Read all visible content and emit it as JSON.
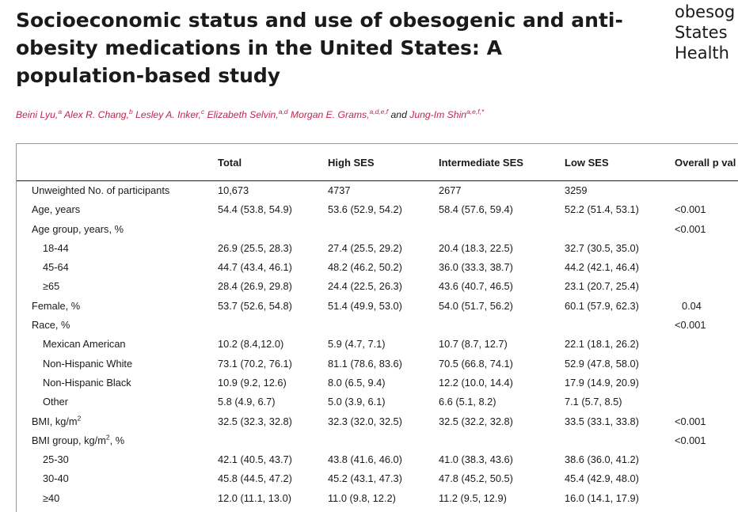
{
  "article": {
    "title": "Socioeconomic status and use of obesogenic and anti-obesity medications in the United States: A population-based study",
    "side_lines": [
      "obesog",
      "States",
      "Health"
    ]
  },
  "authors": [
    {
      "name": "Beini Lyu,",
      "affil": "a"
    },
    {
      "name": "Alex R. Chang,",
      "affil": "b"
    },
    {
      "name": "Lesley A. Inker,",
      "affil": "c"
    },
    {
      "name": "Elizabeth Selvin,",
      "affil": "a,d"
    },
    {
      "name": "Morgan E. Grams,",
      "affil": "a,d,e,f"
    },
    {
      "name": "Jung-Im Shin",
      "affil": "a,e,f,*"
    }
  ],
  "authors_and": "and",
  "table": {
    "headers": [
      "",
      "Total",
      "High SES",
      "Intermediate SES",
      "Low SES",
      "Overall p val"
    ],
    "rows": [
      {
        "label": "Unweighted No. of participants",
        "indent": false,
        "values": [
          "10,673",
          "4737",
          "2677",
          "3259",
          ""
        ],
        "p_center": false
      },
      {
        "label": "Age, years",
        "indent": false,
        "values": [
          "54.4 (53.8, 54.9)",
          "53.6 (52.9, 54.2)",
          "58.4 (57.6, 59.4)",
          "52.2 (51.4, 53.1)",
          "<0.001"
        ],
        "p_center": false
      },
      {
        "label": "Age group, years, %",
        "indent": false,
        "values": [
          "",
          "",
          "",
          "",
          "<0.001"
        ],
        "p_center": false
      },
      {
        "label": "18-44",
        "indent": true,
        "values": [
          "26.9 (25.5, 28.3)",
          "27.4 (25.5, 29.2)",
          "20.4 (18.3, 22.5)",
          "32.7 (30.5, 35.0)",
          ""
        ],
        "p_center": false
      },
      {
        "label": "45-64",
        "indent": true,
        "values": [
          "44.7 (43.4, 46.1)",
          "48.2 (46.2, 50.2)",
          "36.0 (33.3, 38.7)",
          "44.2 (42.1, 46.4)",
          ""
        ],
        "p_center": false
      },
      {
        "label": "≥65",
        "indent": true,
        "values": [
          "28.4 (26.9, 29.8)",
          "24.4 (22.5, 26.3)",
          "43.6 (40.7, 46.5)",
          "23.1 (20.7, 25.4)",
          ""
        ],
        "p_center": false
      },
      {
        "label": "Female, %",
        "indent": false,
        "values": [
          "53.7 (52.6, 54.8)",
          "51.4 (49.9, 53.0)",
          "54.0 (51.7, 56.2)",
          "60.1 (57.9, 62.3)",
          "0.04"
        ],
        "p_center": true
      },
      {
        "label": "Race, %",
        "indent": false,
        "values": [
          "",
          "",
          "",
          "",
          "<0.001"
        ],
        "p_center": false
      },
      {
        "label": "Mexican American",
        "indent": true,
        "values": [
          "10.2 (8.4,12.0)",
          "5.9 (4.7, 7.1)",
          "10.7 (8.7, 12.7)",
          "22.1 (18.1, 26.2)",
          ""
        ],
        "p_center": false
      },
      {
        "label": "Non-Hispanic White",
        "indent": true,
        "values": [
          "73.1 (70.2, 76.1)",
          "81.1 (78.6, 83.6)",
          "70.5 (66.8, 74.1)",
          "52.9 (47.8, 58.0)",
          ""
        ],
        "p_center": false
      },
      {
        "label": "Non-Hispanic Black",
        "indent": true,
        "values": [
          "10.9 (9.2, 12.6)",
          "8.0 (6.5, 9.4)",
          "12.2 (10.0, 14.4)",
          "17.9 (14.9, 20.9)",
          ""
        ],
        "p_center": false
      },
      {
        "label": "Other",
        "indent": true,
        "values": [
          "5.8 (4.9, 6.7)",
          "5.0 (3.9, 6.1)",
          "6.6 (5.1, 8.2)",
          "7.1 (5.7, 8.5)",
          ""
        ],
        "p_center": false
      },
      {
        "label": "BMI, kg/m",
        "label_sup": "2",
        "indent": false,
        "values": [
          "32.5 (32.3, 32.8)",
          "32.3 (32.0, 32.5)",
          "32.5 (32.2, 32.8)",
          "33.5 (33.1, 33.8)",
          "<0.001"
        ],
        "p_center": false
      },
      {
        "label": "BMI group, kg/m",
        "label_sup": "2",
        "label_suffix": ", %",
        "indent": false,
        "values": [
          "",
          "",
          "",
          "",
          "<0.001"
        ],
        "p_center": false
      },
      {
        "label": "25-30",
        "indent": true,
        "values": [
          "42.1 (40.5, 43.7)",
          "43.8 (41.6, 46.0)",
          "41.0 (38.3, 43.6)",
          "38.6 (36.0, 41.2)",
          ""
        ],
        "p_center": false
      },
      {
        "label": "30-40",
        "indent": true,
        "values": [
          "45.8 (44.5, 47.2)",
          "45.2 (43.1, 47.3)",
          "47.8 (45.2, 50.5)",
          "45.4 (42.9, 48.0)",
          ""
        ],
        "p_center": false
      },
      {
        "label": "≥40",
        "indent": true,
        "values": [
          "12.0 (11.1, 13.0)",
          "11.0 (9.8, 12.2)",
          "11.2 (9.5, 12.9)",
          "16.0 (14.1, 17.9)",
          ""
        ],
        "p_center": false
      }
    ]
  }
}
